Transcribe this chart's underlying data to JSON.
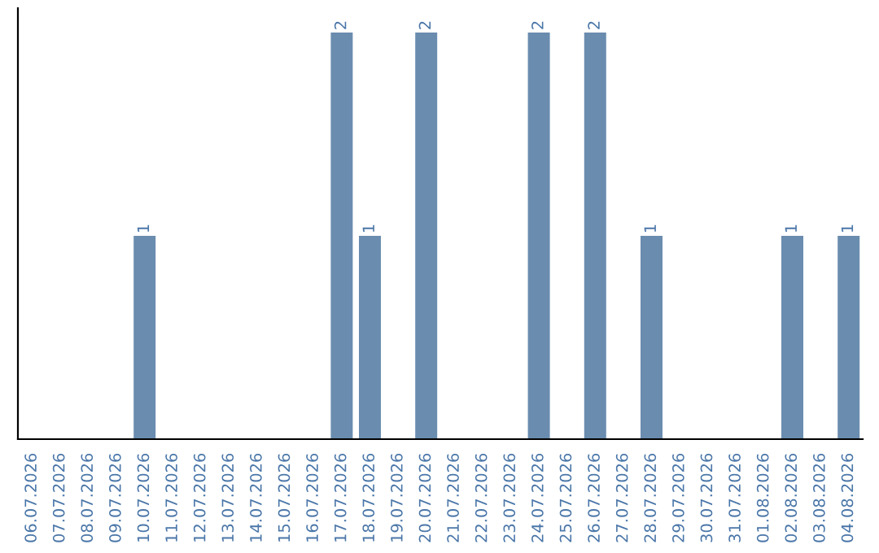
{
  "chart_data": {
    "type": "bar",
    "categories": [
      "06.07.2026",
      "07.07.2026",
      "08.07.2026",
      "09.07.2026",
      "10.07.2026",
      "11.07.2026",
      "12.07.2026",
      "13.07.2026",
      "14.07.2026",
      "15.07.2026",
      "16.07.2026",
      "17.07.2026",
      "18.07.2026",
      "19.07.2026",
      "20.07.2026",
      "21.07.2026",
      "22.07.2026",
      "23.07.2026",
      "24.07.2026",
      "25.07.2026",
      "26.07.2026",
      "27.07.2026",
      "28.07.2026",
      "29.07.2026",
      "30.07.2026",
      "31.07.2026",
      "01.08.2026",
      "02.08.2026",
      "03.08.2026",
      "04.08.2026"
    ],
    "values": [
      0,
      0,
      0,
      0,
      1,
      0,
      0,
      0,
      0,
      0,
      0,
      2,
      1,
      0,
      2,
      0,
      0,
      0,
      2,
      0,
      2,
      0,
      1,
      0,
      0,
      0,
      0,
      1,
      0,
      1
    ],
    "value_labels": [
      null,
      null,
      null,
      null,
      "1",
      null,
      null,
      null,
      null,
      null,
      null,
      "2",
      "1",
      null,
      "2",
      null,
      null,
      null,
      "2",
      null,
      "2",
      null,
      "1",
      null,
      null,
      null,
      null,
      "1",
      null,
      "1"
    ],
    "color": "#6a8caf",
    "grid": false,
    "legend": false
  }
}
